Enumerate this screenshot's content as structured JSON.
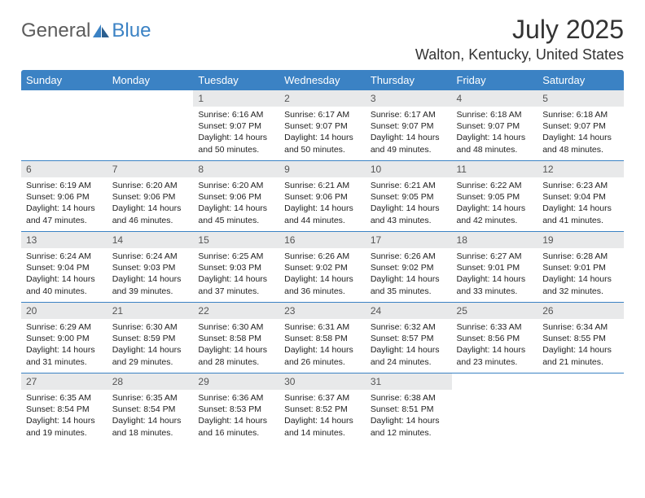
{
  "logo": {
    "part1": "General",
    "part2": "Blue"
  },
  "title": "July 2025",
  "location": "Walton, Kentucky, United States",
  "colors": {
    "header_bg": "#3b82c4",
    "header_text": "#ffffff",
    "daynum_bg": "#e8e9ea",
    "border": "#3b82c4",
    "logo_gray": "#5c5c5c",
    "logo_blue": "#3b82c4"
  },
  "day_headers": [
    "Sunday",
    "Monday",
    "Tuesday",
    "Wednesday",
    "Thursday",
    "Friday",
    "Saturday"
  ],
  "weeks": [
    [
      null,
      null,
      {
        "n": "1",
        "sunrise": "6:16 AM",
        "sunset": "9:07 PM",
        "daylight": "14 hours and 50 minutes."
      },
      {
        "n": "2",
        "sunrise": "6:17 AM",
        "sunset": "9:07 PM",
        "daylight": "14 hours and 50 minutes."
      },
      {
        "n": "3",
        "sunrise": "6:17 AM",
        "sunset": "9:07 PM",
        "daylight": "14 hours and 49 minutes."
      },
      {
        "n": "4",
        "sunrise": "6:18 AM",
        "sunset": "9:07 PM",
        "daylight": "14 hours and 48 minutes."
      },
      {
        "n": "5",
        "sunrise": "6:18 AM",
        "sunset": "9:07 PM",
        "daylight": "14 hours and 48 minutes."
      }
    ],
    [
      {
        "n": "6",
        "sunrise": "6:19 AM",
        "sunset": "9:06 PM",
        "daylight": "14 hours and 47 minutes."
      },
      {
        "n": "7",
        "sunrise": "6:20 AM",
        "sunset": "9:06 PM",
        "daylight": "14 hours and 46 minutes."
      },
      {
        "n": "8",
        "sunrise": "6:20 AM",
        "sunset": "9:06 PM",
        "daylight": "14 hours and 45 minutes."
      },
      {
        "n": "9",
        "sunrise": "6:21 AM",
        "sunset": "9:06 PM",
        "daylight": "14 hours and 44 minutes."
      },
      {
        "n": "10",
        "sunrise": "6:21 AM",
        "sunset": "9:05 PM",
        "daylight": "14 hours and 43 minutes."
      },
      {
        "n": "11",
        "sunrise": "6:22 AM",
        "sunset": "9:05 PM",
        "daylight": "14 hours and 42 minutes."
      },
      {
        "n": "12",
        "sunrise": "6:23 AM",
        "sunset": "9:04 PM",
        "daylight": "14 hours and 41 minutes."
      }
    ],
    [
      {
        "n": "13",
        "sunrise": "6:24 AM",
        "sunset": "9:04 PM",
        "daylight": "14 hours and 40 minutes."
      },
      {
        "n": "14",
        "sunrise": "6:24 AM",
        "sunset": "9:03 PM",
        "daylight": "14 hours and 39 minutes."
      },
      {
        "n": "15",
        "sunrise": "6:25 AM",
        "sunset": "9:03 PM",
        "daylight": "14 hours and 37 minutes."
      },
      {
        "n": "16",
        "sunrise": "6:26 AM",
        "sunset": "9:02 PM",
        "daylight": "14 hours and 36 minutes."
      },
      {
        "n": "17",
        "sunrise": "6:26 AM",
        "sunset": "9:02 PM",
        "daylight": "14 hours and 35 minutes."
      },
      {
        "n": "18",
        "sunrise": "6:27 AM",
        "sunset": "9:01 PM",
        "daylight": "14 hours and 33 minutes."
      },
      {
        "n": "19",
        "sunrise": "6:28 AM",
        "sunset": "9:01 PM",
        "daylight": "14 hours and 32 minutes."
      }
    ],
    [
      {
        "n": "20",
        "sunrise": "6:29 AM",
        "sunset": "9:00 PM",
        "daylight": "14 hours and 31 minutes."
      },
      {
        "n": "21",
        "sunrise": "6:30 AM",
        "sunset": "8:59 PM",
        "daylight": "14 hours and 29 minutes."
      },
      {
        "n": "22",
        "sunrise": "6:30 AM",
        "sunset": "8:58 PM",
        "daylight": "14 hours and 28 minutes."
      },
      {
        "n": "23",
        "sunrise": "6:31 AM",
        "sunset": "8:58 PM",
        "daylight": "14 hours and 26 minutes."
      },
      {
        "n": "24",
        "sunrise": "6:32 AM",
        "sunset": "8:57 PM",
        "daylight": "14 hours and 24 minutes."
      },
      {
        "n": "25",
        "sunrise": "6:33 AM",
        "sunset": "8:56 PM",
        "daylight": "14 hours and 23 minutes."
      },
      {
        "n": "26",
        "sunrise": "6:34 AM",
        "sunset": "8:55 PM",
        "daylight": "14 hours and 21 minutes."
      }
    ],
    [
      {
        "n": "27",
        "sunrise": "6:35 AM",
        "sunset": "8:54 PM",
        "daylight": "14 hours and 19 minutes."
      },
      {
        "n": "28",
        "sunrise": "6:35 AM",
        "sunset": "8:54 PM",
        "daylight": "14 hours and 18 minutes."
      },
      {
        "n": "29",
        "sunrise": "6:36 AM",
        "sunset": "8:53 PM",
        "daylight": "14 hours and 16 minutes."
      },
      {
        "n": "30",
        "sunrise": "6:37 AM",
        "sunset": "8:52 PM",
        "daylight": "14 hours and 14 minutes."
      },
      {
        "n": "31",
        "sunrise": "6:38 AM",
        "sunset": "8:51 PM",
        "daylight": "14 hours and 12 minutes."
      },
      null,
      null
    ]
  ],
  "labels": {
    "sunrise": "Sunrise: ",
    "sunset": "Sunset: ",
    "daylight": "Daylight: "
  }
}
